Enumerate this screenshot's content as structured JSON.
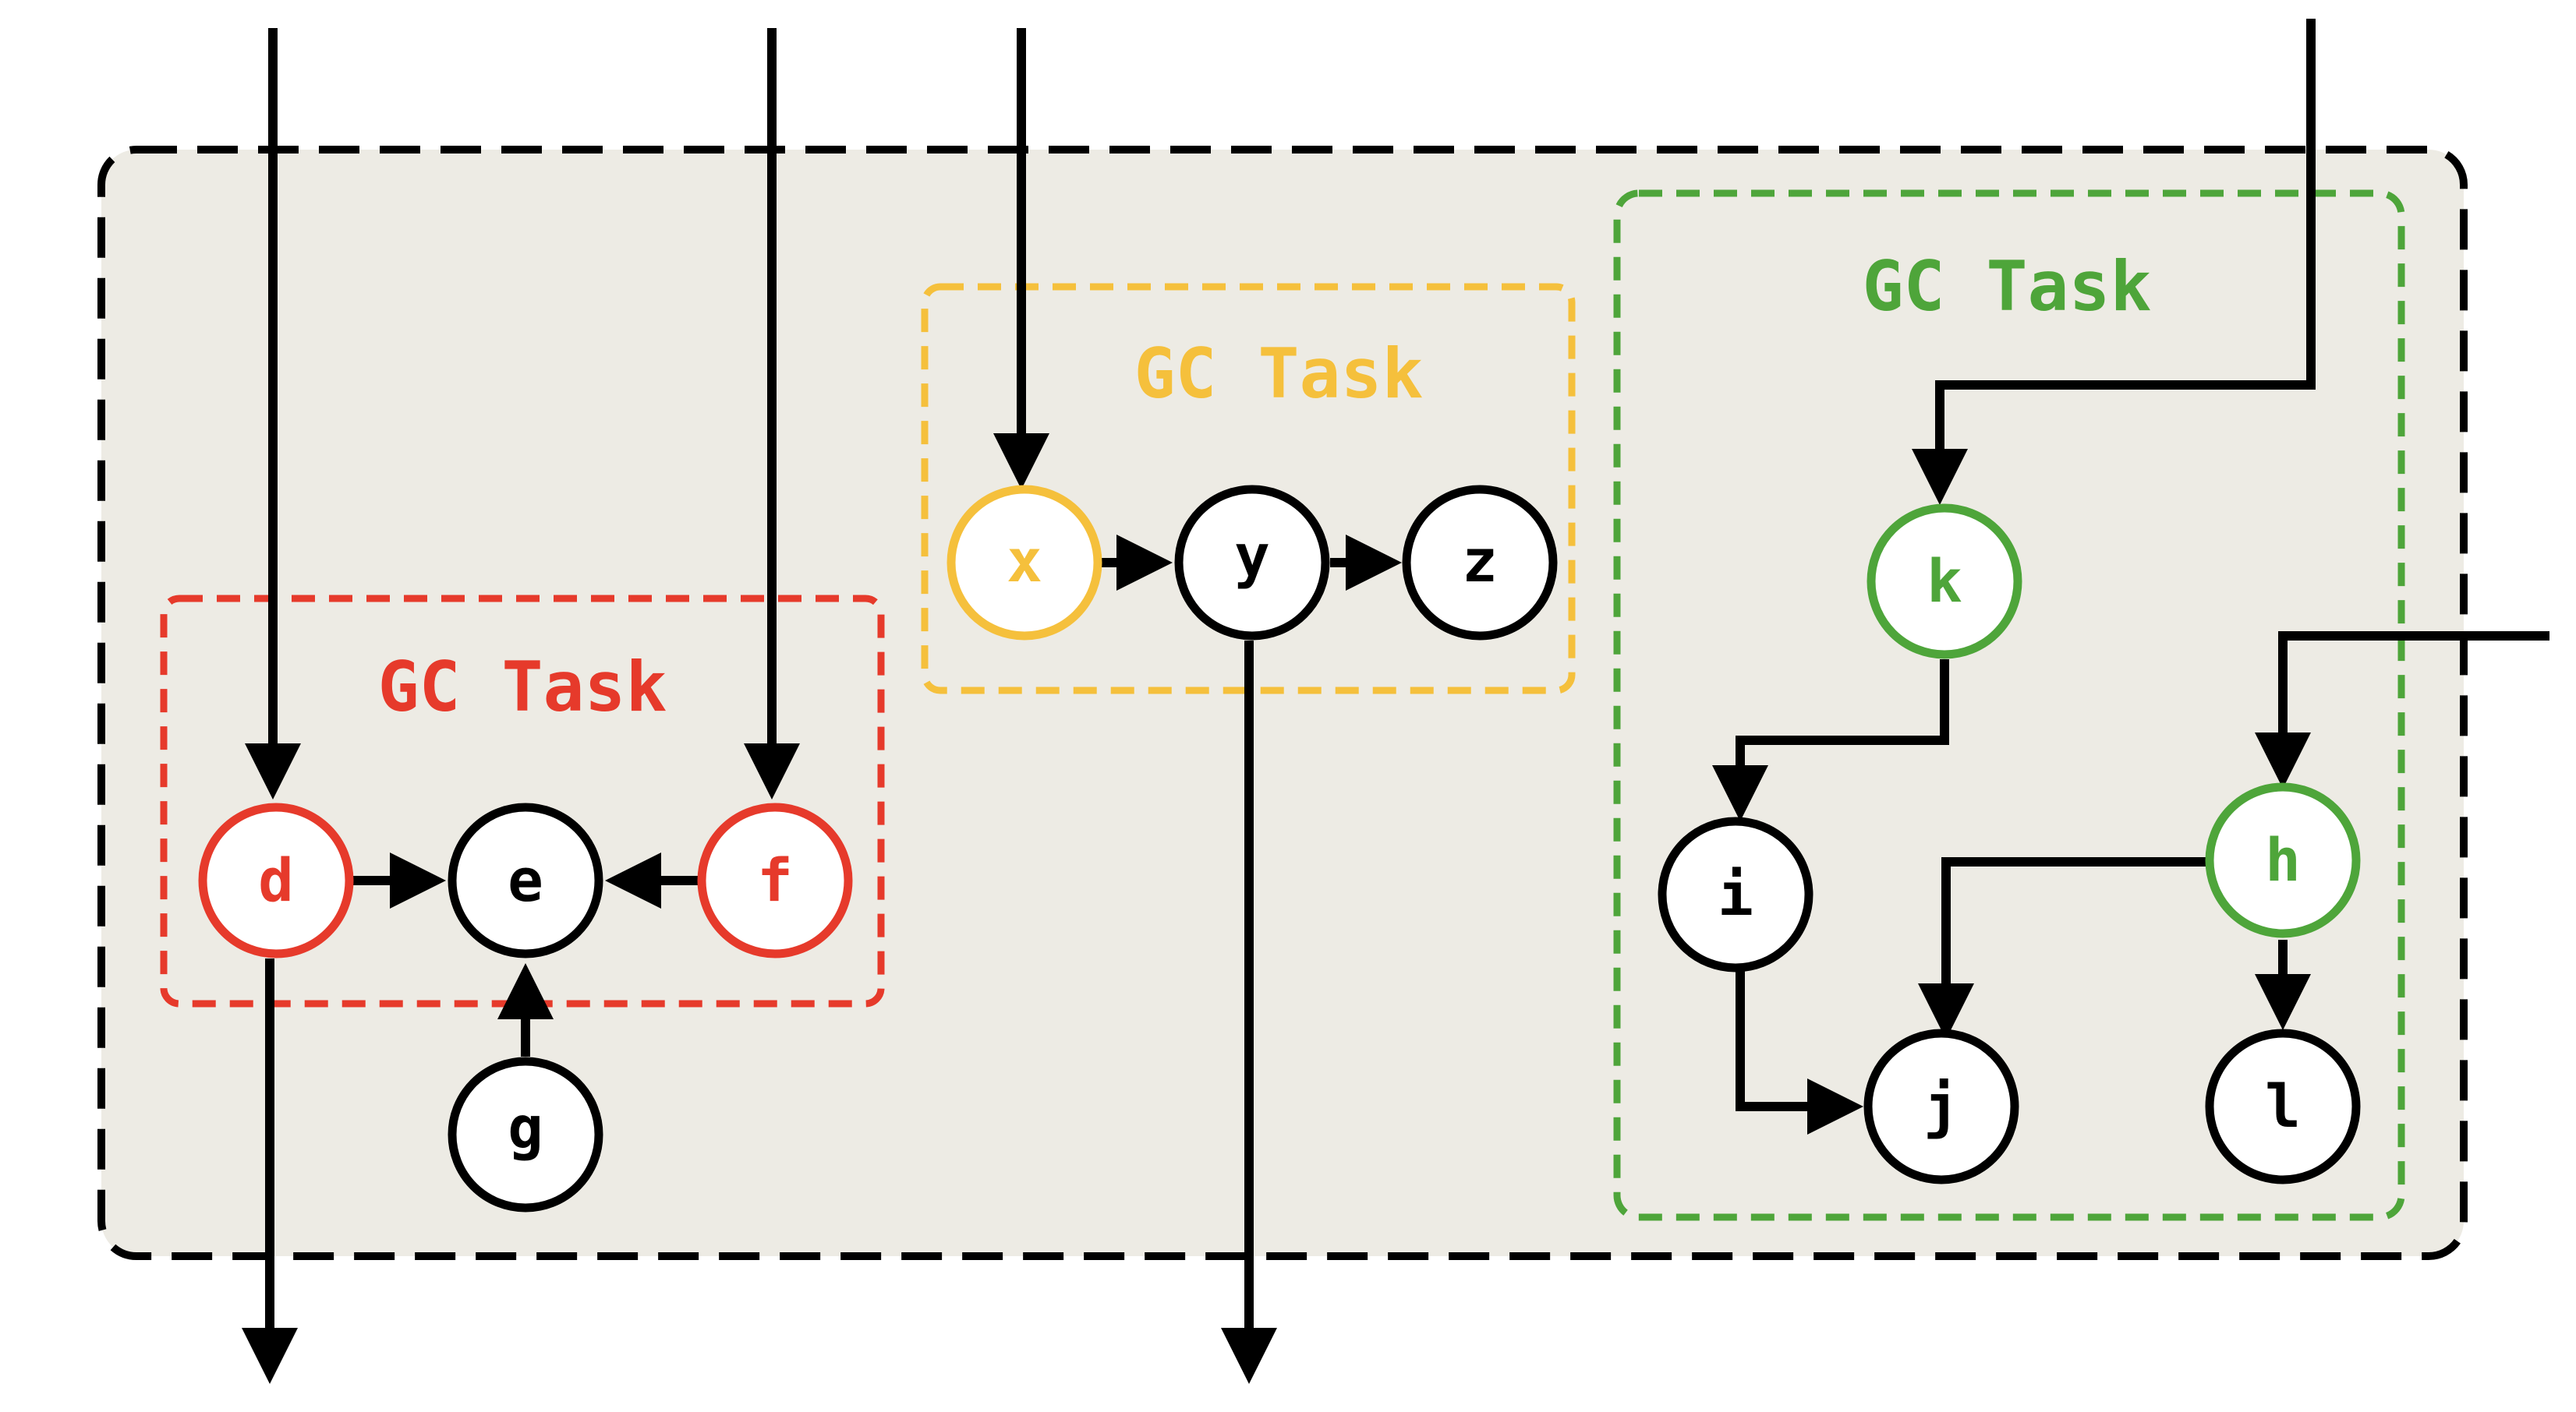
{
  "colors": {
    "black": "#000000",
    "panel_fill": "#edebe4",
    "red": "#e63a2b",
    "yellow": "#f5c03c",
    "green": "#4ea53a",
    "node_fill": "#ffffff"
  },
  "tasks": {
    "red": {
      "label": "GC Task"
    },
    "yellow": {
      "label": "GC Task"
    },
    "green": {
      "label": "GC Task"
    }
  },
  "nodes": {
    "d": "d",
    "e": "e",
    "f": "f",
    "g": "g",
    "x": "x",
    "y": "y",
    "z": "z",
    "k": "k",
    "i": "i",
    "h": "h",
    "j": "j",
    "l": "l"
  }
}
